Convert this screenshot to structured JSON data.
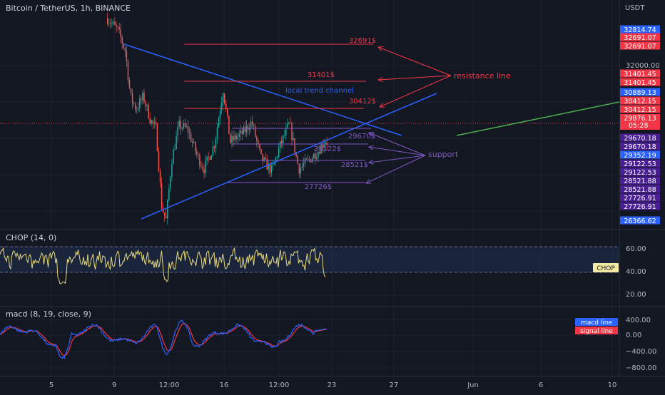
{
  "header": {
    "symbol": "Bitcoin / TetherUS, 1h, BINANCE",
    "currency": "USDT"
  },
  "price_scale": {
    "ticks": [
      "32000.00"
    ],
    "tags": [
      {
        "text": "32814.74",
        "color": "#2962ff"
      },
      {
        "text": "32691.07",
        "color": "#f23645"
      },
      {
        "text": "32691.07",
        "color": "#f23645"
      },
      {
        "text": "31401.45",
        "color": "#f23645"
      },
      {
        "text": "31401.45",
        "color": "#f23645"
      },
      {
        "text": "30889.13",
        "color": "#2962ff"
      },
      {
        "text": "30412.15",
        "color": "#f23645"
      },
      {
        "text": "30412.15",
        "color": "#f23645"
      },
      {
        "text": "29876.13",
        "text2": "05:28",
        "color": "#f23645"
      },
      {
        "text": "29670.18",
        "color": "#4a1f93"
      },
      {
        "text": "29670.18",
        "color": "#4a1f93"
      },
      {
        "text": "29352.19",
        "color": "#2962ff"
      },
      {
        "text": "29122.53",
        "color": "#4a1f93"
      },
      {
        "text": "29122.53",
        "color": "#4a1f93"
      },
      {
        "text": "28521.88",
        "color": "#4a1f93"
      },
      {
        "text": "28521.88",
        "color": "#4a1f93"
      },
      {
        "text": "27726.91",
        "color": "#4a1f93"
      },
      {
        "text": "27726.91",
        "color": "#4a1f93"
      },
      {
        "text": "26366.62",
        "color": "#2962ff"
      }
    ]
  },
  "drawings": {
    "resistance_levels": [
      "32691$",
      "31401$",
      "30412$"
    ],
    "support_levels": [
      "29670$",
      "29122$",
      "28521$",
      "27726$"
    ],
    "trend_label": "local trend channel",
    "resistance_label": "resistance line",
    "support_label": "support",
    "colors": {
      "resistance": "#f23645",
      "support": "#7e57c2",
      "trend": "#2962ff",
      "projection": "#4caf50"
    }
  },
  "chop_panel": {
    "title": "CHOP (14, 0)",
    "ticks": [
      "60.00",
      "40.00",
      "20.00"
    ],
    "tag": "CHOP",
    "upper_band": 61.8,
    "lower_band": 38.2
  },
  "macd_panel": {
    "title": "macd (8, 19, close, 9)",
    "ticks": [
      "400.00",
      "0.00",
      "−400.00",
      "−800.00"
    ],
    "legend": [
      {
        "name": "macd line",
        "color": "#2962ff"
      },
      {
        "name": "signal line",
        "color": "#f23645"
      }
    ]
  },
  "time_axis": [
    "5",
    "9",
    "12:00",
    "16",
    "12:00",
    "23",
    "27",
    "Jun",
    "6",
    "10"
  ],
  "chart_data": {
    "type": "candlestick",
    "symbol": "Bitcoin / TetherUS",
    "interval": "1h",
    "exchange": "BINANCE",
    "last_price": 29876.13,
    "countdown": "05:28",
    "y_ticks": [
      32000
    ],
    "price_levels": [
      32814.74,
      32691.07,
      31401.45,
      30889.13,
      30412.15,
      29670.18,
      29352.19,
      29122.53,
      28521.88,
      27726.91,
      26366.62
    ],
    "x_ticks": [
      "5",
      "9",
      "12:00",
      "16",
      "12:00",
      "23",
      "27",
      "Jun",
      "6",
      "10"
    ],
    "indicators": [
      "CHOP (14, 0)",
      "macd (8, 19, close, 9)"
    ]
  }
}
